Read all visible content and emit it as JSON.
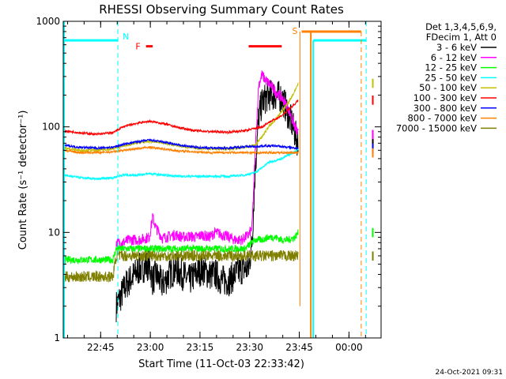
{
  "chart_data": {
    "type": "line",
    "title": "RHESSI Observing Summary Count Rates",
    "xlabel": "Start Time (11-Oct-03 22:33:42)",
    "ylabel": "Count Rate (s⁻¹ detector⁻¹)",
    "yscale": "log",
    "ylim": [
      1,
      1000
    ],
    "xlim_minutes": [
      0,
      96
    ],
    "x_tick_labels": [
      "22:45",
      "23:00",
      "23:15",
      "23:30",
      "23:45",
      "00:00"
    ],
    "x_tick_minutes": [
      11.3,
      26.3,
      41.3,
      56.3,
      71.3,
      86.3
    ],
    "y_tick_labels": [
      "1",
      "10",
      "100",
      "1000"
    ],
    "y_tick_values": [
      1,
      10,
      100,
      1000
    ],
    "legend": {
      "header": [
        "Det 1,3,4,5,6,9,",
        "FDecim 1, Att 0"
      ],
      "position": "right"
    },
    "series": [
      {
        "name": "3 - 6 keV",
        "color": "#000000",
        "x": [
          16,
          19,
          20,
          23,
          26,
          27,
          28,
          30,
          32,
          34,
          36,
          38,
          40,
          42,
          44,
          46,
          48,
          50,
          52,
          54,
          56,
          57,
          58,
          59,
          60,
          62,
          64,
          66,
          67,
          68,
          69,
          70,
          71
        ],
        "y": [
          2,
          3.2,
          3.5,
          4.5,
          5,
          3.5,
          4,
          3.2,
          4,
          4.5,
          4,
          3.5,
          4,
          4.5,
          4,
          4,
          3.5,
          3.5,
          4,
          4.5,
          4.5,
          8,
          40,
          120,
          170,
          200,
          200,
          190,
          160,
          130,
          110,
          85,
          70
        ]
      },
      {
        "name": "6 - 12 keV",
        "color": "#ff00ff",
        "x": [
          16,
          18,
          20,
          23,
          26,
          27,
          28,
          30,
          32,
          34,
          36,
          38,
          40,
          42,
          44,
          46,
          48,
          50,
          52,
          54,
          56,
          57,
          58,
          59,
          60,
          61,
          62,
          63,
          64,
          65,
          66,
          67,
          68,
          69,
          70,
          71
        ],
        "y": [
          8,
          8,
          8.5,
          8.5,
          9,
          14,
          11,
          8.8,
          9.2,
          9.5,
          9,
          9.2,
          9,
          9.5,
          9,
          10,
          9.5,
          9,
          8.5,
          8.5,
          9.5,
          11,
          60,
          250,
          310,
          280,
          260,
          240,
          220,
          200,
          190,
          170,
          150,
          120,
          100,
          85
        ]
      },
      {
        "name": "12 - 25 keV",
        "color": "#00ff00",
        "x": [
          0,
          10,
          15,
          16,
          20,
          25,
          30,
          35,
          40,
          45,
          50,
          55,
          56,
          58,
          60,
          62,
          64,
          66,
          68,
          70,
          71
        ],
        "y": [
          5.5,
          5.5,
          5.5,
          7,
          7,
          7,
          7,
          7,
          7,
          7,
          7,
          7,
          7.5,
          8.5,
          8.5,
          9,
          9,
          8.5,
          8.5,
          9,
          10
        ]
      },
      {
        "name": "25 - 50 keV",
        "color": "#00ffff",
        "x": [
          0,
          5,
          10,
          15,
          18,
          22,
          26,
          30,
          35,
          40,
          45,
          50,
          55,
          58,
          60,
          62,
          64,
          66,
          68,
          70,
          71
        ],
        "y": [
          35,
          33,
          32,
          33,
          35,
          35,
          36,
          35,
          34,
          34,
          34,
          34,
          35,
          37,
          41,
          46,
          48,
          50,
          54,
          58,
          62
        ]
      },
      {
        "name": "50 - 100 keV",
        "color": "#c0c000",
        "x": [
          0,
          5,
          10,
          15,
          18,
          22,
          26,
          30,
          35,
          40,
          45,
          50,
          55,
          58,
          60,
          62,
          64,
          66,
          68,
          70,
          71
        ],
        "y": [
          63,
          60,
          60,
          62,
          66,
          70,
          73,
          71,
          66,
          63,
          62,
          62,
          64,
          68,
          80,
          100,
          115,
          140,
          170,
          220,
          260
        ]
      },
      {
        "name": "100 - 300 keV",
        "color": "#ff0000",
        "x": [
          0,
          5,
          10,
          15,
          18,
          22,
          26,
          30,
          35,
          40,
          45,
          50,
          55,
          58,
          60,
          62,
          64,
          66,
          68,
          70,
          71
        ],
        "y": [
          92,
          88,
          85,
          88,
          100,
          108,
          113,
          108,
          98,
          92,
          90,
          89,
          92,
          97,
          100,
          110,
          118,
          128,
          145,
          165,
          180
        ]
      },
      {
        "name": "300 - 800 keV",
        "color": "#0000ff",
        "x": [
          0,
          5,
          10,
          15,
          18,
          22,
          26,
          30,
          35,
          40,
          45,
          50,
          55,
          58,
          60,
          62,
          64,
          66,
          68,
          70,
          71
        ],
        "y": [
          67,
          64,
          63,
          64,
          68,
          72,
          75,
          72,
          67,
          64,
          63,
          63,
          65,
          65,
          66,
          66,
          66,
          65,
          64,
          63,
          63
        ]
      },
      {
        "name": "800 - 7000 keV",
        "color": "#ff8000",
        "x": [
          0,
          5,
          10,
          15,
          18,
          22,
          26,
          30,
          35,
          40,
          45,
          50,
          55,
          58,
          60,
          62,
          64,
          66,
          68,
          70,
          71
        ],
        "y": [
          60,
          57,
          57,
          58,
          60,
          62,
          64,
          62,
          59,
          58,
          57,
          57,
          57,
          57,
          57,
          57,
          57,
          57,
          57,
          57,
          57
        ]
      },
      {
        "name": "7000 - 15000 keV",
        "color": "#808000",
        "x": [
          0,
          5,
          10,
          15,
          16,
          20,
          25,
          30,
          35,
          40,
          45,
          50,
          55,
          58,
          60,
          62,
          64,
          66,
          68,
          70,
          71
        ],
        "y": [
          3.8,
          3.8,
          3.8,
          3.8,
          6,
          6,
          6,
          6,
          6,
          6,
          6,
          6,
          6,
          6,
          6,
          6,
          6,
          6,
          6,
          6,
          6
        ]
      }
    ],
    "annotations": {
      "night_label": "N",
      "flare_label": "F",
      "saa_label": "S",
      "night_bars": [
        [
          0,
          16.5
        ],
        [
          75.5,
          91.5
        ]
      ],
      "night_marker_lines": [
        16.5,
        91.5
      ],
      "flare_bars": [
        [
          25,
          27
        ],
        [
          56,
          66
        ]
      ],
      "saa_bar": [
        72,
        90
      ],
      "saa_lines": [
        71.5,
        75.5,
        90
      ],
      "saa_bar_level": 800,
      "night_bar_level": 660,
      "flare_bar_level": 580
    },
    "colors": {
      "night": "#00ffff",
      "flare": "#ff0000",
      "saa": "#ff8000"
    }
  },
  "timestamp": "24-Oct-2021 09:31"
}
